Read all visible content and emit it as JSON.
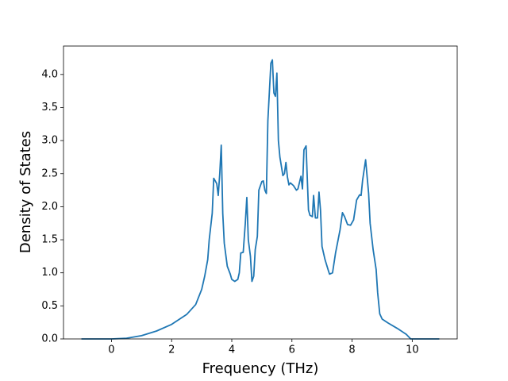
{
  "chart_data": {
    "type": "line",
    "xlabel": "Frequency (THz)",
    "ylabel": "Density of States",
    "color": "#1f77b4",
    "x": [
      -1,
      -0.5,
      0,
      0.5,
      1,
      1.5,
      2,
      2.5,
      2.8,
      3.0,
      3.1,
      3.2,
      3.25,
      3.35,
      3.4,
      3.5,
      3.55,
      3.6,
      3.65,
      3.7,
      3.75,
      3.85,
      3.95,
      4.0,
      4.1,
      4.2,
      4.25,
      4.3,
      4.38,
      4.45,
      4.5,
      4.55,
      4.62,
      4.67,
      4.73,
      4.78,
      4.85,
      4.9,
      5.0,
      5.05,
      5.1,
      5.15,
      5.2,
      5.3,
      5.35,
      5.4,
      5.45,
      5.5,
      5.55,
      5.6,
      5.7,
      5.75,
      5.8,
      5.85,
      5.9,
      5.95,
      6.05,
      6.15,
      6.2,
      6.3,
      6.35,
      6.4,
      6.47,
      6.55,
      6.6,
      6.68,
      6.72,
      6.78,
      6.85,
      6.9,
      6.95,
      7.0,
      7.1,
      7.2,
      7.25,
      7.35,
      7.45,
      7.6,
      7.68,
      7.75,
      7.85,
      7.95,
      8.05,
      8.15,
      8.25,
      8.3,
      8.35,
      8.45,
      8.55,
      8.6,
      8.7,
      8.8,
      8.85,
      8.92,
      9.0,
      9.2,
      9.5,
      9.8,
      9.95,
      10.4,
      10.9
    ],
    "values": [
      0,
      0,
      0,
      0.01,
      0.05,
      0.12,
      0.22,
      0.37,
      0.52,
      0.75,
      0.95,
      1.2,
      1.5,
      1.9,
      2.43,
      2.35,
      2.17,
      2.5,
      2.93,
      1.9,
      1.45,
      1.1,
      0.98,
      0.9,
      0.87,
      0.9,
      1.0,
      1.3,
      1.31,
      1.75,
      2.14,
      1.5,
      1.25,
      0.87,
      0.95,
      1.35,
      1.55,
      2.25,
      2.38,
      2.39,
      2.25,
      2.2,
      3.3,
      4.17,
      4.22,
      3.72,
      3.67,
      4.02,
      3.0,
      2.75,
      2.47,
      2.5,
      2.67,
      2.45,
      2.33,
      2.36,
      2.32,
      2.25,
      2.27,
      2.46,
      2.27,
      2.86,
      2.92,
      1.95,
      1.87,
      1.85,
      2.17,
      1.83,
      1.83,
      2.22,
      1.95,
      1.4,
      1.2,
      1.05,
      0.98,
      1.0,
      1.3,
      1.65,
      1.91,
      1.85,
      1.73,
      1.72,
      1.8,
      2.1,
      2.18,
      2.17,
      2.4,
      2.71,
      2.2,
      1.75,
      1.35,
      1.05,
      0.7,
      0.38,
      0.3,
      0.24,
      0.16,
      0.07,
      0,
      0,
      0
    ],
    "xlim": [
      -1.595,
      11.495
    ],
    "ylim": [
      0,
      4.43
    ],
    "xticks": [
      0,
      2,
      4,
      6,
      8,
      10
    ],
    "yticks": [
      {
        "value": 0,
        "label": "0.0"
      },
      {
        "value": 0.5,
        "label": "0.5"
      },
      {
        "value": 1,
        "label": "1.0"
      },
      {
        "value": 1.5,
        "label": "1.5"
      },
      {
        "value": 2,
        "label": "2.0"
      },
      {
        "value": 2.5,
        "label": "2.5"
      },
      {
        "value": 3,
        "label": "3.0"
      },
      {
        "value": 3.5,
        "label": "3.5"
      },
      {
        "value": 4,
        "label": "4.0"
      }
    ]
  }
}
